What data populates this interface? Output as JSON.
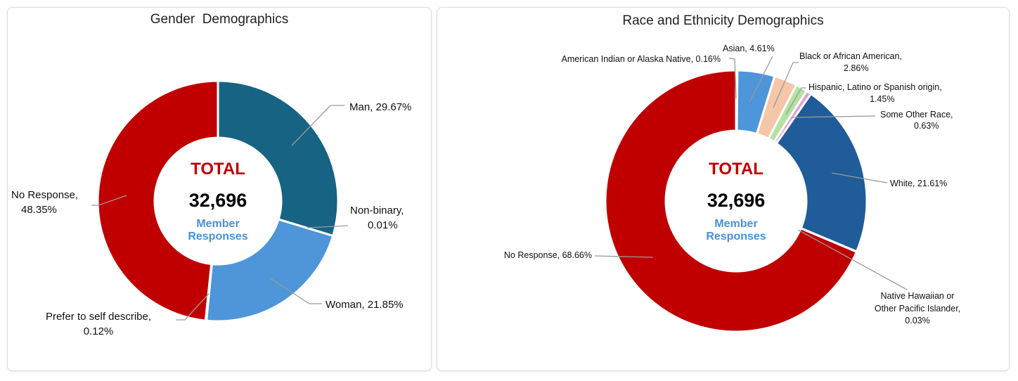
{
  "chart_data": [
    {
      "type": "pie",
      "donut": true,
      "title": "Gender  Demographics",
      "center": {
        "total_label": "TOTAL",
        "total_value": "32,696",
        "sub1": "Member",
        "sub2": "Responses"
      },
      "slices": [
        {
          "label": [
            "Man, 29.67%"
          ],
          "value": 29.67,
          "color": "#176383"
        },
        {
          "label": [
            "Non-binary,",
            "0.01%"
          ],
          "value": 0.01,
          "color": "#a0b8c8"
        },
        {
          "label": [
            "Woman, 21.85%"
          ],
          "value": 21.85,
          "color": "#4e95d9"
        },
        {
          "label": [
            "Prefer to self describe,",
            "0.12%"
          ],
          "value": 0.12,
          "color": "#c9d6e3"
        },
        {
          "label": [
            "No Response,",
            "48.35%"
          ],
          "value": 48.35,
          "color": "#c00000"
        }
      ]
    },
    {
      "type": "pie",
      "donut": true,
      "title": "Race and Ethnicity Demographics",
      "center": {
        "total_label": "TOTAL",
        "total_value": "32,696",
        "sub1": "Member",
        "sub2": "Responses"
      },
      "slices": [
        {
          "label": [
            "American Indian or Alaska Native, 0.16%"
          ],
          "value": 0.16,
          "color": "#7f7f7f"
        },
        {
          "label": [
            "Asian, 4.61%"
          ],
          "value": 4.61,
          "color": "#4e95d9"
        },
        {
          "label": [
            "Black or African American,",
            "2.86%"
          ],
          "value": 2.86,
          "color": "#f5c6a8"
        },
        {
          "label": [
            "Hispanic, Latino or Spanish origin,",
            "1.45%"
          ],
          "value": 1.45,
          "color": "#b4e2a0"
        },
        {
          "label": [
            "Some Other Race,",
            "0.63%"
          ],
          "value": 0.63,
          "color": "#e39ae0"
        },
        {
          "label": [
            "White, 21.61%"
          ],
          "value": 21.61,
          "color": "#1f5c99"
        },
        {
          "label": [
            "Native Hawaiian or",
            "Other Pacific Islander,",
            "0.03%"
          ],
          "value": 0.03,
          "color": "#8fa9c9"
        },
        {
          "label": [
            "No Response, 68.66%"
          ],
          "value": 68.66,
          "color": "#c00000"
        }
      ]
    }
  ]
}
